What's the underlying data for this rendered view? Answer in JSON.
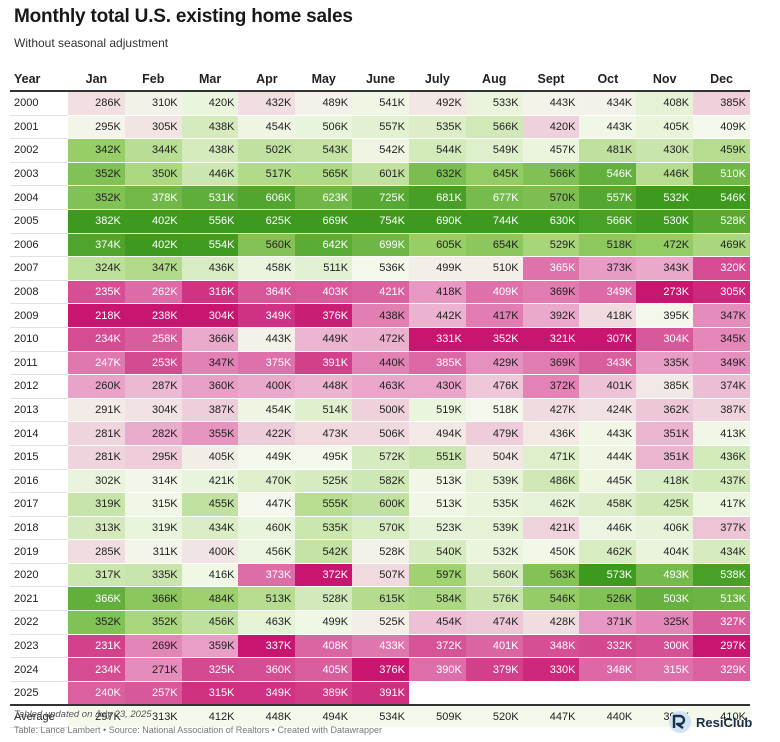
{
  "title": "Monthly total U.S. existing home sales",
  "subtitle": "Without seasonal adjustment",
  "note": "Tabled updated on July 23, 2025",
  "source": "Table: Lance Lambert • Source: National Association of Realtors • Created with Datawrapper",
  "logo_text": "ResiClub",
  "colors": {
    "low_extreme": "#c8156f",
    "low_mid": "#e89cc6",
    "neutral": "#f4f9ec",
    "high_mid": "#9ed16d",
    "high_extreme": "#3d9a1f",
    "text_dark": "#222222",
    "text_light": "#ffffff"
  },
  "chart_data": {
    "type": "table",
    "title": "Monthly total U.S. existing home sales",
    "subtitle": "Without seasonal adjustment",
    "year_header": "Year",
    "columns": [
      "Jan",
      "Feb",
      "Mar",
      "Apr",
      "May",
      "June",
      "July",
      "Aug",
      "Sept",
      "Oct",
      "Nov",
      "Dec"
    ],
    "rows": [
      {
        "label": "2000",
        "values": [
          "286K",
          "310K",
          "420K",
          "432K",
          "489K",
          "541K",
          "492K",
          "533K",
          "443K",
          "434K",
          "408K",
          "385K"
        ]
      },
      {
        "label": "2001",
        "values": [
          "295K",
          "305K",
          "438K",
          "454K",
          "506K",
          "557K",
          "535K",
          "566K",
          "420K",
          "443K",
          "405K",
          "409K"
        ]
      },
      {
        "label": "2002",
        "values": [
          "342K",
          "344K",
          "438K",
          "502K",
          "543K",
          "542K",
          "544K",
          "549K",
          "457K",
          "481K",
          "430K",
          "459K"
        ]
      },
      {
        "label": "2003",
        "values": [
          "352K",
          "350K",
          "446K",
          "517K",
          "565K",
          "601K",
          "632K",
          "645K",
          "566K",
          "546K",
          "446K",
          "510K"
        ]
      },
      {
        "label": "2004",
        "values": [
          "352K",
          "378K",
          "531K",
          "606K",
          "623K",
          "725K",
          "681K",
          "677K",
          "570K",
          "557K",
          "532K",
          "546K"
        ]
      },
      {
        "label": "2005",
        "values": [
          "382K",
          "402K",
          "556K",
          "625K",
          "669K",
          "754K",
          "690K",
          "744K",
          "630K",
          "566K",
          "530K",
          "528K"
        ]
      },
      {
        "label": "2006",
        "values": [
          "374K",
          "402K",
          "554K",
          "560K",
          "642K",
          "699K",
          "605K",
          "654K",
          "529K",
          "518K",
          "472K",
          "469K"
        ]
      },
      {
        "label": "2007",
        "values": [
          "324K",
          "347K",
          "436K",
          "458K",
          "511K",
          "536K",
          "499K",
          "510K",
          "365K",
          "373K",
          "343K",
          "320K"
        ]
      },
      {
        "label": "2008",
        "values": [
          "235K",
          "262K",
          "316K",
          "364K",
          "403K",
          "421K",
          "418K",
          "409K",
          "369K",
          "349K",
          "273K",
          "305K"
        ]
      },
      {
        "label": "2009",
        "values": [
          "218K",
          "238K",
          "304K",
          "349K",
          "376K",
          "438K",
          "442K",
          "417K",
          "392K",
          "418K",
          "395K",
          "347K"
        ]
      },
      {
        "label": "2010",
        "values": [
          "234K",
          "258K",
          "366K",
          "443K",
          "449K",
          "472K",
          "331K",
          "352K",
          "321K",
          "307K",
          "304K",
          "345K"
        ]
      },
      {
        "label": "2011",
        "values": [
          "247K",
          "253K",
          "347K",
          "375K",
          "391K",
          "440K",
          "385K",
          "429K",
          "369K",
          "343K",
          "335K",
          "349K"
        ]
      },
      {
        "label": "2012",
        "values": [
          "260K",
          "287K",
          "360K",
          "400K",
          "448K",
          "463K",
          "430K",
          "476K",
          "372K",
          "401K",
          "385K",
          "374K"
        ]
      },
      {
        "label": "2013",
        "values": [
          "291K",
          "304K",
          "387K",
          "454K",
          "514K",
          "500K",
          "519K",
          "518K",
          "427K",
          "424K",
          "362K",
          "387K"
        ]
      },
      {
        "label": "2014",
        "values": [
          "281K",
          "282K",
          "355K",
          "422K",
          "473K",
          "506K",
          "494K",
          "479K",
          "436K",
          "443K",
          "351K",
          "413K"
        ]
      },
      {
        "label": "2015",
        "values": [
          "281K",
          "295K",
          "405K",
          "449K",
          "495K",
          "572K",
          "551K",
          "504K",
          "471K",
          "444K",
          "351K",
          "436K"
        ]
      },
      {
        "label": "2016",
        "values": [
          "302K",
          "314K",
          "421K",
          "470K",
          "525K",
          "582K",
          "513K",
          "539K",
          "486K",
          "445K",
          "418K",
          "437K"
        ]
      },
      {
        "label": "2017",
        "values": [
          "319K",
          "315K",
          "455K",
          "447K",
          "555K",
          "600K",
          "513K",
          "535K",
          "462K",
          "458K",
          "425K",
          "417K"
        ]
      },
      {
        "label": "2018",
        "values": [
          "313K",
          "319K",
          "434K",
          "460K",
          "535K",
          "570K",
          "523K",
          "539K",
          "421K",
          "446K",
          "406K",
          "377K"
        ]
      },
      {
        "label": "2019",
        "values": [
          "285K",
          "311K",
          "400K",
          "456K",
          "542K",
          "528K",
          "540K",
          "532K",
          "450K",
          "462K",
          "404K",
          "434K"
        ]
      },
      {
        "label": "2020",
        "values": [
          "317K",
          "335K",
          "416K",
          "373K",
          "372K",
          "507K",
          "597K",
          "560K",
          "563K",
          "573K",
          "493K",
          "538K"
        ]
      },
      {
        "label": "2021",
        "values": [
          "366K",
          "366K",
          "484K",
          "513K",
          "528K",
          "615K",
          "584K",
          "576K",
          "546K",
          "526K",
          "503K",
          "513K"
        ]
      },
      {
        "label": "2022",
        "values": [
          "352K",
          "352K",
          "456K",
          "463K",
          "499K",
          "525K",
          "454K",
          "474K",
          "428K",
          "371K",
          "325K",
          "327K"
        ]
      },
      {
        "label": "2023",
        "values": [
          "231K",
          "269K",
          "359K",
          "337K",
          "408K",
          "433K",
          "372K",
          "401K",
          "348K",
          "332K",
          "300K",
          "297K"
        ]
      },
      {
        "label": "2024",
        "values": [
          "234K",
          "271K",
          "325K",
          "360K",
          "405K",
          "376K",
          "390K",
          "379K",
          "330K",
          "348K",
          "315K",
          "329K"
        ]
      },
      {
        "label": "2025",
        "values": [
          "240K",
          "257K",
          "315K",
          "349K",
          "389K",
          "391K",
          "",
          "",
          "",
          "",
          "",
          ""
        ]
      }
    ],
    "average": {
      "label": "Average",
      "values": [
        "297K",
        "313K",
        "412K",
        "448K",
        "494K",
        "534K",
        "509K",
        "520K",
        "447K",
        "440K",
        "396K",
        "410K"
      ]
    },
    "color_scale": {
      "per_column": true
    }
  }
}
